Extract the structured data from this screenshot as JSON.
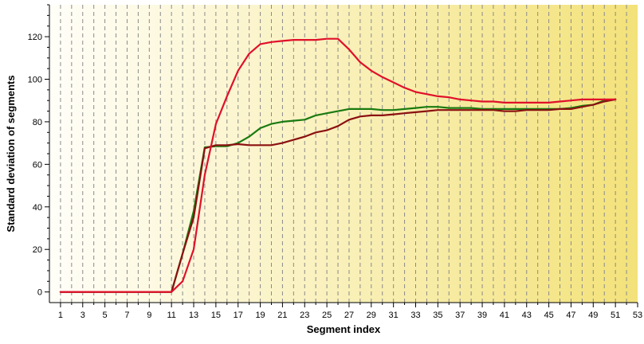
{
  "chart_data": {
    "type": "line",
    "title": "",
    "xlabel": "Segment index",
    "ylabel": "Standard deviation of segments",
    "xlim": [
      0,
      53
    ],
    "ylim": [
      -5,
      135
    ],
    "grid": {
      "vertical": true,
      "horizontal": false
    },
    "x_ticks": [
      1,
      3,
      5,
      7,
      9,
      11,
      13,
      15,
      17,
      19,
      21,
      23,
      25,
      27,
      29,
      31,
      33,
      35,
      37,
      39,
      41,
      43,
      45,
      47,
      49,
      51,
      53
    ],
    "y_ticks": [
      0,
      20,
      40,
      60,
      80,
      100,
      120
    ],
    "x": [
      1,
      2,
      3,
      4,
      5,
      6,
      7,
      8,
      9,
      10,
      11,
      12,
      13,
      14,
      15,
      16,
      17,
      18,
      19,
      20,
      21,
      22,
      23,
      24,
      25,
      26,
      27,
      28,
      29,
      30,
      31,
      32,
      33,
      34,
      35,
      36,
      37,
      38,
      39,
      40,
      41,
      42,
      43,
      44,
      45,
      46,
      47,
      48,
      49,
      50,
      51
    ],
    "background_gradient": [
      "#fffef8",
      "#f3e27a"
    ],
    "series": [
      {
        "color": "#1a7a10",
        "values": [
          0,
          0,
          0,
          0,
          0,
          0,
          0,
          0,
          0,
          0,
          0,
          18,
          38,
          68,
          68.5,
          68.5,
          70,
          73,
          77,
          79,
          80,
          80.5,
          81,
          83,
          84,
          85,
          86,
          86,
          86,
          85.5,
          85.5,
          86,
          86.5,
          87,
          87,
          86.5,
          86.5,
          86.5,
          86,
          86,
          86,
          86,
          86,
          86,
          86,
          86,
          86.5,
          87.5,
          88,
          90,
          90.5
        ]
      },
      {
        "color": "#8b1010",
        "values": [
          0,
          0,
          0,
          0,
          0,
          0,
          0,
          0,
          0,
          0,
          0,
          18,
          35,
          67.5,
          69,
          69,
          69.5,
          69,
          69,
          69,
          70,
          71.5,
          73,
          75,
          76,
          78,
          81,
          82.5,
          83,
          83,
          83.5,
          84,
          84.5,
          85,
          85.5,
          85.5,
          85.5,
          85.5,
          85.5,
          85.5,
          85,
          85,
          85.5,
          85.5,
          85.5,
          86,
          86,
          87,
          88,
          89.5,
          90.5
        ]
      },
      {
        "color": "#e0102a",
        "values": [
          0,
          0,
          0,
          0,
          0,
          0,
          0,
          0,
          0,
          0,
          0,
          5,
          20,
          55,
          79,
          92,
          104,
          112,
          116.5,
          117.5,
          118,
          118.5,
          118.5,
          118.5,
          119,
          119,
          114,
          108,
          104,
          101,
          98.5,
          96,
          94,
          93,
          92,
          91.5,
          90.5,
          90,
          89.5,
          89.5,
          89,
          89,
          89,
          89,
          89,
          89.5,
          90,
          90.5,
          90.5,
          90.5,
          90.5
        ]
      }
    ]
  }
}
